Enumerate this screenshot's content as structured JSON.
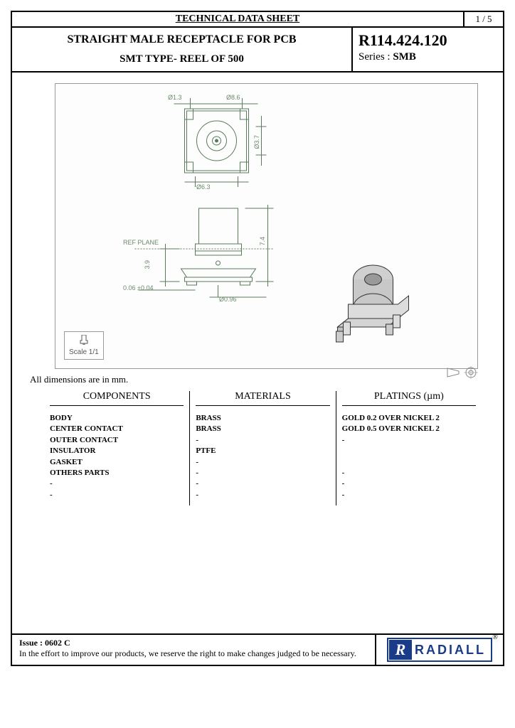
{
  "header": {
    "doc_title": "TECHNICAL DATA SHEET",
    "page": "1 / 5"
  },
  "title": {
    "line1": "STRAIGHT MALE RECEPTACLE FOR PCB",
    "line2": "SMT TYPE- REEL OF 500",
    "part_number": "R114.424.120",
    "series_label": "Series : ",
    "series_value": "SMB"
  },
  "drawing": {
    "ref_plane": "REF PLANE",
    "dim_d13": "Ø1.3",
    "dim_d86": "Ø8.6",
    "dim_d37": "Ø3.7",
    "dim_d063": "Ø6.3",
    "dim_74": "7.4",
    "dim_39": "3.9",
    "dim_tol": "0.06 ±0.04",
    "dim_d096": "Ø0.96",
    "scale": "Scale 1/1"
  },
  "note": "All dimensions are in mm.",
  "table": {
    "head_components": "COMPONENTS",
    "head_materials": "MATERIALS",
    "head_platings": "PLATINGS (µm)",
    "components": [
      "BODY",
      "CENTER CONTACT",
      "OUTER CONTACT",
      "INSULATOR",
      "GASKET",
      "OTHERS PARTS",
      "-",
      "-"
    ],
    "materials": [
      "BRASS",
      "BRASS",
      "-",
      "PTFE",
      "-",
      "-",
      "-",
      "-"
    ],
    "platings": [
      "GOLD 0.2 OVER NICKEL 2",
      "GOLD 0.5 OVER NICKEL 2",
      "-",
      "",
      "",
      "-",
      "-",
      "-"
    ]
  },
  "footer": {
    "issue": "Issue : 0602 C",
    "disclaimer": "In the effort to improve our products, we reserve the right to make changes judged to be necessary.",
    "brand": "RADIALL"
  }
}
